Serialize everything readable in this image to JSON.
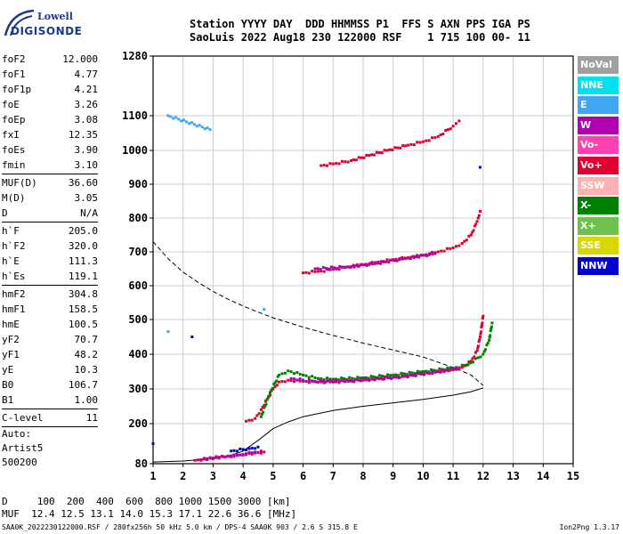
{
  "logo": {
    "line1": "Lowell",
    "line2": "DIGISONDE"
  },
  "header": {
    "line1": "Station YYYY DAY  DDD HHMMSS P1  FFS S AXN PPS IGA PS",
    "line2": "SaoLuis 2022 Aug18 230 122000 RSF    1 715 100 00- 11"
  },
  "params": [
    {
      "label": "foF2",
      "value": "12.000"
    },
    {
      "label": "foF1",
      "value": "4.77"
    },
    {
      "label": "foF1p",
      "value": "4.21"
    },
    {
      "label": "foE",
      "value": "3.26"
    },
    {
      "label": "foEp",
      "value": "3.08"
    },
    {
      "label": "fxI",
      "value": "12.35"
    },
    {
      "label": "foEs",
      "value": "3.90"
    },
    {
      "label": "fmin",
      "value": "3.10",
      "sep_after": true
    },
    {
      "label": "MUF(D)",
      "value": "36.60"
    },
    {
      "label": "M(D)",
      "value": "3.05"
    },
    {
      "label": "D",
      "value": "N/A",
      "sep_after": true
    },
    {
      "label": "h`F",
      "value": "205.0"
    },
    {
      "label": "h`F2",
      "value": "320.0"
    },
    {
      "label": "h`E",
      "value": "111.3"
    },
    {
      "label": "h`Es",
      "value": "119.1",
      "sep_after": true
    },
    {
      "label": "hmF2",
      "value": "304.8"
    },
    {
      "label": "hmF1",
      "value": "158.5"
    },
    {
      "label": "hmE",
      "value": "100.5"
    },
    {
      "label": "yF2",
      "value": "70.7"
    },
    {
      "label": "yF1",
      "value": "48.2"
    },
    {
      "label": "yE",
      "value": "10.3"
    },
    {
      "label": "B0",
      "value": "106.7"
    },
    {
      "label": "B1",
      "value": "1.00",
      "sep_after": true
    },
    {
      "label": "C-level",
      "value": "11",
      "sep_after": true
    }
  ],
  "artist": {
    "line1": "Auto:",
    "line2": "Artist5",
    "line3": "500200"
  },
  "legend": [
    {
      "label": "NoVal",
      "color": "#a0a0a0"
    },
    {
      "label": "NNE",
      "color": "#00e0f0"
    },
    {
      "label": "E",
      "color": "#40a8f0"
    },
    {
      "label": "W",
      "color": "#b000b0"
    },
    {
      "label": "Vo-",
      "color": "#ff40b0"
    },
    {
      "label": "Vo+",
      "color": "#e00030"
    },
    {
      "label": "SSW",
      "color": "#ffb0b0"
    },
    {
      "label": "X-",
      "color": "#008000"
    },
    {
      "label": "X+",
      "color": "#70c050"
    },
    {
      "label": "SSE",
      "color": "#d8d800"
    },
    {
      "label": "NNW",
      "color": "#0000d0"
    }
  ],
  "bottom": {
    "line1": "D     100  200  400  600  800 1000 1500 3000 [km]",
    "line2": "MUF  12.4 12.5 13.1 14.0 15.3 17.1 22.6 36.6 [MHz]"
  },
  "footer": {
    "left": "SAA0K_2022230122000.RSF / 280fx256h 50 kHz 5.0 km / DPS-4 SAA0K 903 / 2.6 S 315.8 E",
    "right": "Ion2Png 1.3.17"
  },
  "chart_data": {
    "type": "scatter",
    "x_ticks": [
      1,
      2,
      3,
      4,
      5,
      6,
      7,
      8,
      9,
      10,
      11,
      12,
      13,
      14,
      15
    ],
    "y_ticks": [
      80,
      200,
      300,
      400,
      500,
      600,
      700,
      800,
      900,
      1000,
      1100,
      1280
    ],
    "xlim": [
      1,
      15
    ],
    "ylim": [
      80,
      1280
    ],
    "grid": true,
    "series": [
      {
        "color_key": "Vo+",
        "points": [
          [
            4.1,
            207
          ],
          [
            4.4,
            215
          ],
          [
            4.6,
            240
          ],
          [
            4.8,
            270
          ],
          [
            5.0,
            300
          ],
          [
            5.2,
            320
          ],
          [
            5.5,
            325
          ],
          [
            6.0,
            322
          ],
          [
            6.5,
            320
          ],
          [
            7.0,
            320
          ],
          [
            7.5,
            322
          ],
          [
            8.0,
            325
          ],
          [
            8.5,
            330
          ],
          [
            9.0,
            333
          ],
          [
            9.5,
            338
          ],
          [
            10.0,
            345
          ],
          [
            10.5,
            350
          ],
          [
            11.0,
            355
          ],
          [
            11.3,
            362
          ],
          [
            11.6,
            380
          ],
          [
            11.8,
            410
          ],
          [
            11.9,
            450
          ],
          [
            12.0,
            510
          ]
        ]
      },
      {
        "color_key": "X-",
        "points": [
          [
            4.6,
            220
          ],
          [
            4.9,
            290
          ],
          [
            5.2,
            340
          ],
          [
            5.5,
            352
          ],
          [
            6.0,
            340
          ],
          [
            6.5,
            330
          ],
          [
            7.0,
            328
          ],
          [
            8.0,
            332
          ],
          [
            9.0,
            340
          ],
          [
            10.0,
            350
          ],
          [
            11.0,
            360
          ],
          [
            11.5,
            370
          ],
          [
            12.0,
            400
          ],
          [
            12.2,
            440
          ],
          [
            12.3,
            490
          ]
        ]
      },
      {
        "color_key": "W",
        "points": [
          [
            5.6,
            330
          ],
          [
            6.3,
            322
          ],
          [
            7.2,
            323
          ],
          [
            8.2,
            327
          ],
          [
            9.3,
            335
          ],
          [
            10.4,
            348
          ],
          [
            11.2,
            360
          ]
        ]
      },
      {
        "color_key": "Vo+",
        "points": [
          [
            6.0,
            638
          ],
          [
            6.5,
            642
          ],
          [
            7.0,
            648
          ],
          [
            7.5,
            655
          ],
          [
            8.0,
            662
          ],
          [
            8.5,
            670
          ],
          [
            9.0,
            677
          ],
          [
            9.5,
            683
          ],
          [
            10.0,
            690
          ],
          [
            10.5,
            700
          ],
          [
            11.0,
            712
          ],
          [
            11.3,
            725
          ],
          [
            11.6,
            750
          ],
          [
            11.8,
            790
          ],
          [
            11.9,
            820
          ]
        ]
      },
      {
        "color_key": "W",
        "points": [
          [
            6.4,
            650
          ],
          [
            7.4,
            655
          ],
          [
            8.4,
            665
          ],
          [
            9.4,
            680
          ],
          [
            10.4,
            695
          ]
        ]
      },
      {
        "color_key": "Vo+",
        "points": [
          [
            6.6,
            955
          ],
          [
            7.0,
            960
          ],
          [
            7.6,
            970
          ],
          [
            8.2,
            985
          ],
          [
            8.8,
            1000
          ],
          [
            9.5,
            1015
          ],
          [
            10.0,
            1025
          ],
          [
            10.5,
            1040
          ],
          [
            11.0,
            1070
          ],
          [
            11.2,
            1085
          ]
        ]
      },
      {
        "color_key": "Vo+",
        "points": [
          [
            2.4,
            90
          ],
          [
            2.8,
            95
          ],
          [
            3.2,
            100
          ],
          [
            3.5,
            103
          ],
          [
            3.8,
            105
          ],
          [
            4.1,
            110
          ],
          [
            4.4,
            112
          ],
          [
            4.7,
            115
          ]
        ]
      },
      {
        "color_key": "W",
        "points": [
          [
            2.6,
            92
          ],
          [
            3.0,
            97
          ],
          [
            3.4,
            101
          ],
          [
            3.9,
            106
          ],
          [
            4.3,
            113
          ],
          [
            4.6,
            118
          ]
        ]
      },
      {
        "color_key": "NNW",
        "points": [
          [
            3.6,
            118
          ],
          [
            4.2,
            125
          ],
          [
            4.5,
            130
          ],
          [
            1.0,
            140
          ],
          [
            2.3,
            450
          ],
          [
            11.9,
            950
          ]
        ]
      },
      {
        "color_key": "E",
        "points": [
          [
            1.5,
            1100
          ],
          [
            2.9,
            1060
          ],
          [
            1.5,
            465
          ],
          [
            4.7,
            530
          ]
        ]
      }
    ],
    "profile_solid": [
      [
        1.0,
        85
      ],
      [
        2.0,
        88
      ],
      [
        3.0,
        95
      ],
      [
        3.5,
        102
      ],
      [
        4.0,
        118
      ],
      [
        4.5,
        150
      ],
      [
        5.0,
        185
      ],
      [
        5.5,
        205
      ],
      [
        6.0,
        220
      ],
      [
        7.0,
        238
      ],
      [
        8.0,
        250
      ],
      [
        9.0,
        260
      ],
      [
        10.0,
        270
      ],
      [
        11.0,
        282
      ],
      [
        11.6,
        292
      ],
      [
        12.0,
        303
      ]
    ],
    "profile_dashed": [
      [
        1.0,
        730
      ],
      [
        1.5,
        680
      ],
      [
        2.0,
        640
      ],
      [
        2.5,
        610
      ],
      [
        3.0,
        583
      ],
      [
        3.5,
        560
      ],
      [
        4.0,
        540
      ],
      [
        4.5,
        522
      ],
      [
        5.0,
        505
      ],
      [
        6.0,
        478
      ],
      [
        7.0,
        454
      ],
      [
        8.0,
        432
      ],
      [
        9.0,
        412
      ],
      [
        10.0,
        392
      ],
      [
        11.0,
        362
      ],
      [
        11.6,
        340
      ],
      [
        12.0,
        310
      ]
    ]
  }
}
